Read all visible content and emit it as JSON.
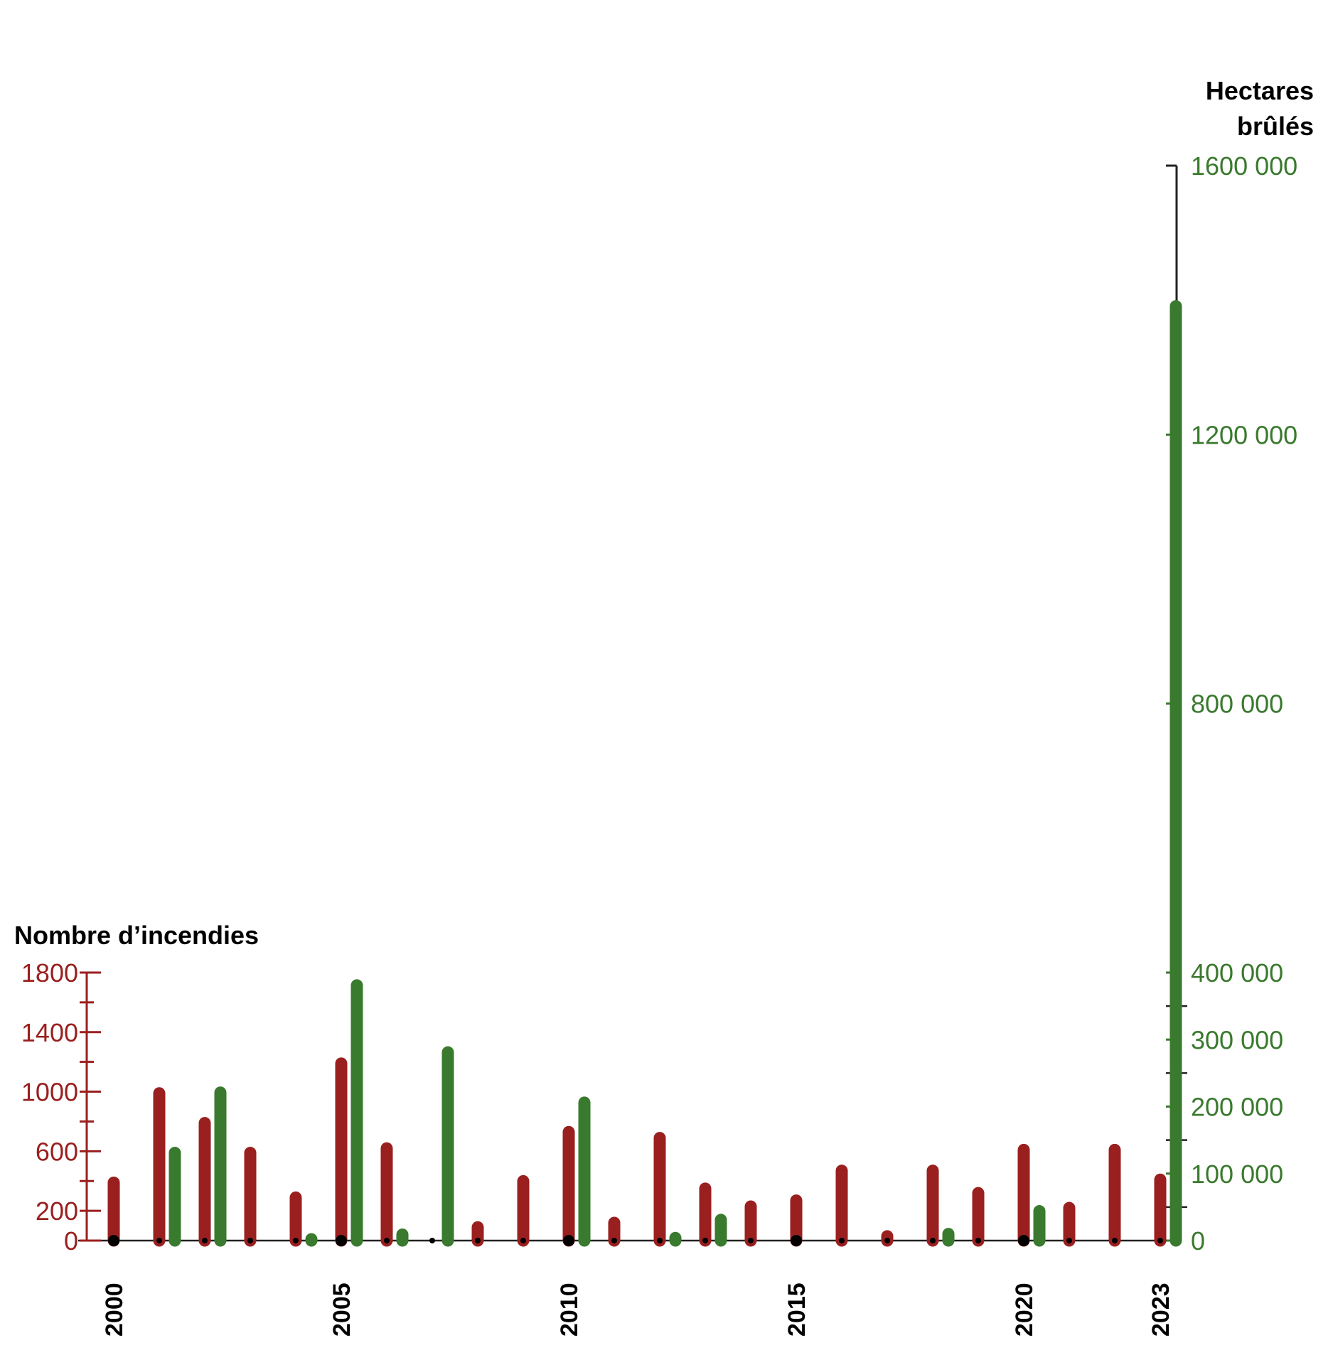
{
  "chart_data": {
    "type": "bar",
    "colors": {
      "fires": "#9a1f1f",
      "hectares": "#3a7a2e",
      "axis": "#222222"
    },
    "x": [
      2000,
      2001,
      2002,
      2003,
      2004,
      2005,
      2006,
      2007,
      2008,
      2009,
      2010,
      2011,
      2012,
      2013,
      2014,
      2015,
      2016,
      2017,
      2018,
      2019,
      2020,
      2021,
      2022,
      2023
    ],
    "x_tick_labels": [
      "2000",
      "2005",
      "2010",
      "2015",
      "2020",
      "2023"
    ],
    "left_axis": {
      "title": "Nombre d’incendies",
      "ylim": [
        0,
        1800
      ],
      "tick_labels": [
        "1800",
        "1400",
        "1000",
        "600",
        "200",
        "0"
      ],
      "tick_values": [
        1800,
        1400,
        1000,
        600,
        200,
        0
      ],
      "minor_tick_values": [
        1600,
        1200,
        800,
        400
      ]
    },
    "right_axis": {
      "title_line1": "Hectares",
      "title_line2": "brûlés",
      "tick_labels": [
        "1600 000",
        "1200 000",
        "800 000",
        "400 000",
        "300 000",
        "200 000",
        "100 000",
        "0"
      ],
      "tick_values": [
        1600000,
        1200000,
        800000,
        400000,
        300000,
        200000,
        100000,
        0
      ],
      "minor_tick_values": [
        350000,
        250000,
        150000,
        50000
      ],
      "scale_note": "broken scale: 0–400 000 on lower segment, 400 000–1 600 000 on upper segment"
    },
    "series": [
      {
        "name": "Nombre d’incendies",
        "axis": "left",
        "values": [
          430,
          1030,
          830,
          630,
          330,
          1230,
          660,
          0,
          130,
          440,
          770,
          160,
          730,
          390,
          270,
          310,
          510,
          70,
          510,
          360,
          650,
          260,
          650,
          450
        ]
      },
      {
        "name": "Hectares brûlés",
        "axis": "right",
        "values": [
          0,
          140000,
          230000,
          0,
          5000,
          390000,
          18000,
          290000,
          0,
          0,
          215000,
          0,
          13000,
          40000,
          0,
          0,
          0,
          0,
          19000,
          0,
          53000,
          0,
          0,
          1400000
        ]
      }
    ]
  }
}
